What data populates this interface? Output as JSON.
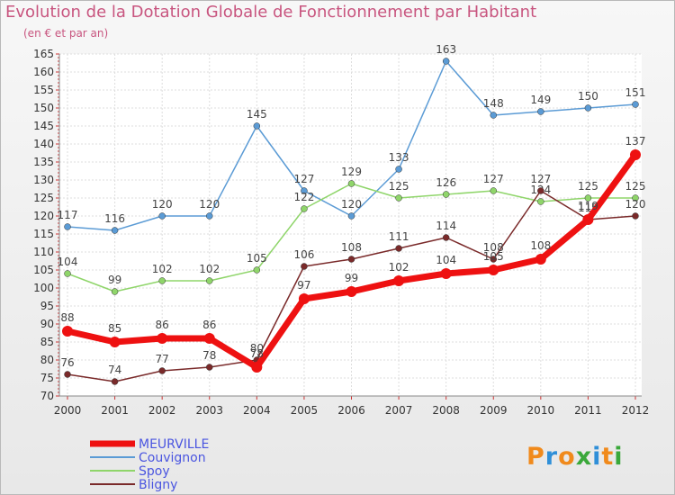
{
  "header": {
    "title": "Evolution de la Dotation Globale de Fonctionnement par Habitant",
    "subtitle": "(en € et par an)"
  },
  "logo": {
    "letters": [
      "P",
      "r",
      "o",
      "x",
      "i",
      "t",
      "i"
    ],
    "colors": [
      "#f08a1c",
      "#2f8fd8",
      "#f08a1c",
      "#3aa83a",
      "#2f8fd8",
      "#f08a1c",
      "#3aa83a"
    ]
  },
  "chart_data": {
    "type": "line",
    "x": [
      "2000",
      "2001",
      "2002",
      "2003",
      "2004",
      "2005",
      "2006",
      "2007",
      "2008",
      "2009",
      "2010",
      "2011",
      "2012"
    ],
    "ylim": [
      70,
      165
    ],
    "yticks": [
      70,
      75,
      80,
      85,
      90,
      95,
      100,
      105,
      110,
      115,
      120,
      125,
      130,
      135,
      140,
      145,
      150,
      155,
      160,
      165
    ],
    "grid": true,
    "legend_position": "bottom-left",
    "series": [
      {
        "name": "Couvignon",
        "color": "#5b9bd5",
        "values": [
          117,
          116,
          120,
          120,
          145,
          127,
          120,
          133,
          163,
          148,
          149,
          150,
          151
        ]
      },
      {
        "name": "Spoy",
        "color": "#8fd56a",
        "values": [
          104,
          99,
          102,
          102,
          105,
          122,
          129,
          125,
          126,
          127,
          124,
          125,
          125
        ]
      },
      {
        "name": "Bligny",
        "color": "#7a2a2a",
        "values": [
          76,
          74,
          77,
          78,
          80,
          106,
          108,
          111,
          114,
          108,
          127,
          119,
          120
        ]
      },
      {
        "name": "MEURVILLE",
        "color": "#ee1111",
        "values": [
          88,
          85,
          86,
          86,
          78,
          97,
          99,
          102,
          104,
          105,
          108,
          119,
          137
        ]
      }
    ],
    "legend_order": [
      "MEURVILLE",
      "Couvignon",
      "Spoy",
      "Bligny"
    ],
    "legend_text_color": "#4a55e0"
  }
}
